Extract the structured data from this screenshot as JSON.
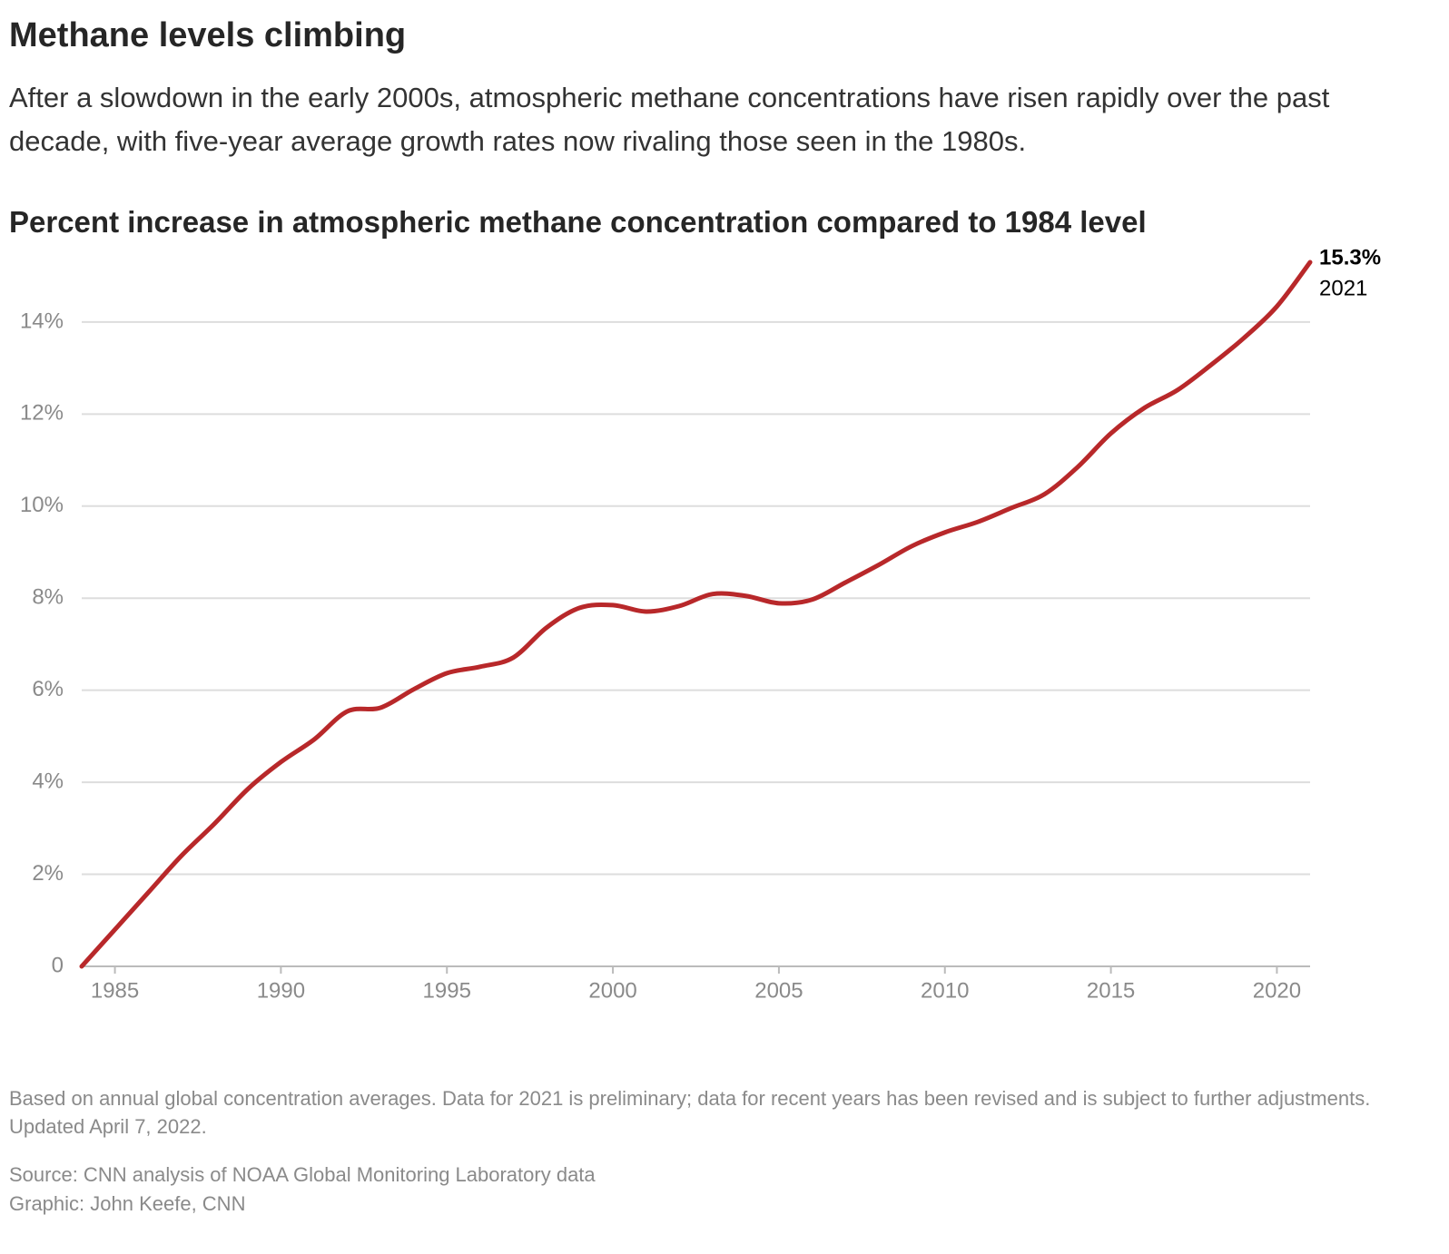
{
  "chart_data": {
    "type": "line",
    "title": "Methane levels climbing",
    "subtitle": "After a slowdown in the early 2000s, atmospheric methane concentrations have risen rapidly over the past decade, with five-year average growth rates now rivaling those seen in the 1980s.",
    "chart_title": "Percent increase in atmospheric methane concentration compared to 1984 level",
    "note": "Based on annual global concentration averages. Data for 2021 is preliminary; data for recent years has been revised and is subject to further adjustments. Updated April 7, 2022.",
    "source": "Source: CNN analysis of NOAA Global Monitoring Laboratory data",
    "credit": "Graphic: John Keefe, CNN",
    "x": [
      1984,
      1985,
      1986,
      1987,
      1988,
      1989,
      1990,
      1991,
      1992,
      1993,
      1994,
      1995,
      1996,
      1997,
      1998,
      1999,
      2000,
      2001,
      2002,
      2003,
      2004,
      2005,
      2006,
      2007,
      2008,
      2009,
      2010,
      2011,
      2012,
      2013,
      2014,
      2015,
      2016,
      2017,
      2018,
      2019,
      2020,
      2021
    ],
    "series": [
      {
        "color": "#b8282a",
        "values": [
          0,
          0.8,
          1.6,
          2.4,
          3.1,
          3.85,
          4.44,
          4.93,
          5.54,
          5.62,
          6.02,
          6.37,
          6.51,
          6.71,
          7.36,
          7.79,
          7.85,
          7.71,
          7.83,
          8.09,
          8.05,
          7.89,
          7.97,
          8.34,
          8.72,
          9.13,
          9.43,
          9.66,
          9.96,
          10.26,
          10.85,
          11.58,
          12.13,
          12.52,
          13.06,
          13.65,
          14.34,
          15.3
        ],
        "value_labels": [
          null,
          null,
          null,
          null,
          null,
          null,
          null,
          null,
          null,
          null,
          null,
          null,
          null,
          null,
          null,
          null,
          null,
          null,
          null,
          null,
          null,
          null,
          null,
          null,
          null,
          null,
          null,
          null,
          null,
          null,
          null,
          null,
          null,
          null,
          null,
          null,
          null,
          "15.3%"
        ]
      }
    ],
    "xlim": [
      1984,
      2021
    ],
    "xticks": [
      1985,
      1990,
      1995,
      2000,
      2005,
      2010,
      2015,
      2020
    ],
    "ylim": [
      0,
      15.3
    ],
    "yticks": [
      0,
      {
        "value": 2,
        "label": "2%"
      },
      {
        "value": 4,
        "label": "4%"
      },
      {
        "value": 6,
        "label": "6%"
      },
      {
        "value": 8,
        "label": "8%"
      },
      {
        "value": 10,
        "label": "10%"
      },
      {
        "value": 12,
        "label": "12%"
      },
      {
        "value": 14,
        "label": "14%"
      }
    ],
    "grid": true
  }
}
